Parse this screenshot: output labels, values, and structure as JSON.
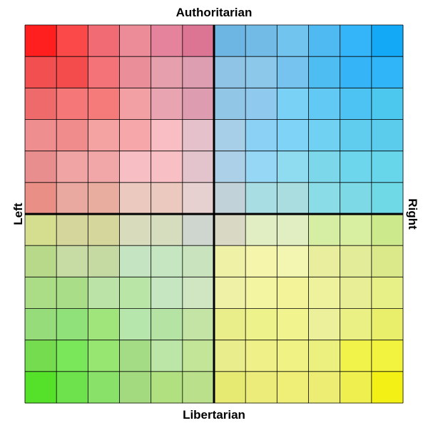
{
  "labels": {
    "top": "Authoritarian",
    "bottom": "Libertarian",
    "left": "Left",
    "right": "Right"
  },
  "grid": {
    "rows": 12,
    "cols": 12,
    "line_color": "#000000",
    "colors": [
      [
        "#ff1f1f",
        "#fb4848",
        "#f06b73",
        "#ec8c98",
        "#e4839b",
        "#dc7493",
        "#6db5e2",
        "#73bbe7",
        "#71c4ee",
        "#4fbaf2",
        "#34b4f9",
        "#13a9f7"
      ],
      [
        "#f25050",
        "#f44c4c",
        "#f47378",
        "#ea8f99",
        "#e6a0ad",
        "#dc9eb0",
        "#8fc4e6",
        "#8bc8ea",
        "#76c3ef",
        "#4ebdf2",
        "#35b5f7",
        "#30b6f8"
      ],
      [
        "#ef6b6b",
        "#f57778",
        "#f57a7a",
        "#f3a0a4",
        "#e8a5b1",
        "#de9cb0",
        "#91c6e7",
        "#8fcaee",
        "#79d1f5",
        "#61c9f3",
        "#4cc3f2",
        "#4cc7ee"
      ],
      [
        "#ef8e8e",
        "#f08c8c",
        "#f4a2a2",
        "#f5a7aa",
        "#f8bec4",
        "#e5c1cb",
        "#a8cfe8",
        "#8bd1f6",
        "#7fd3f7",
        "#70d1f3",
        "#60ccee",
        "#5cccec"
      ],
      [
        "#e98e8e",
        "#f0a4a4",
        "#f1a7a7",
        "#f7bec4",
        "#f8c0c4",
        "#e3c4cd",
        "#abd0e7",
        "#96d7f5",
        "#8fdcf1",
        "#7dd7ea",
        "#6dd6ec",
        "#67d6eb"
      ],
      [
        "#e98f86",
        "#eaa9a0",
        "#e9ad9f",
        "#ecc9bf",
        "#ecc9bf",
        "#e7d0d0",
        "#c2d2d9",
        "#a8dde3",
        "#a9dde0",
        "#8adce7",
        "#7dd9e6",
        "#6fd9e5"
      ],
      [
        "#d5de8e",
        "#d4d69c",
        "#d4d69c",
        "#d8dbbc",
        "#d6dcbe",
        "#ced6cf",
        "#d9d8c5",
        "#e1edc2",
        "#e1eec1",
        "#d6eea3",
        "#d8eea1",
        "#cce98c"
      ],
      [
        "#b8d88a",
        "#c7dca5",
        "#c4daa2",
        "#c5e4c2",
        "#c5e6c1",
        "#cae3bf",
        "#eef1a6",
        "#f5f6ab",
        "#f3f6b0",
        "#e9ee9f",
        "#e3ed99",
        "#dce98b"
      ],
      [
        "#abdc86",
        "#a9dd88",
        "#bbe3a8",
        "#b9e6a6",
        "#c5e6c1",
        "#d0e6c3",
        "#eef1a6",
        "#f4f5a1",
        "#f3f49a",
        "#eef29d",
        "#e8ee95",
        "#e7ef87"
      ],
      [
        "#97dc7a",
        "#91e17b",
        "#9fe57c",
        "#b7e6ac",
        "#b5e3a4",
        "#c4e4a6",
        "#eaee8a",
        "#eef28b",
        "#f1f38e",
        "#ecf09a",
        "#ebf085",
        "#e9ef6b"
      ],
      [
        "#74dc4e",
        "#7ae65a",
        "#97e672",
        "#a4dc86",
        "#bce5a8",
        "#c2e597",
        "#eaed8c",
        "#eff088",
        "#f0f283",
        "#ecf07f",
        "#f1f34a",
        "#f1f33e"
      ],
      [
        "#55e02a",
        "#6de24d",
        "#89e169",
        "#a3da80",
        "#b0e07f",
        "#bbe08c",
        "#e7ea72",
        "#ebec7a",
        "#efef77",
        "#eced72",
        "#efef4f",
        "#f2f015"
      ]
    ]
  }
}
